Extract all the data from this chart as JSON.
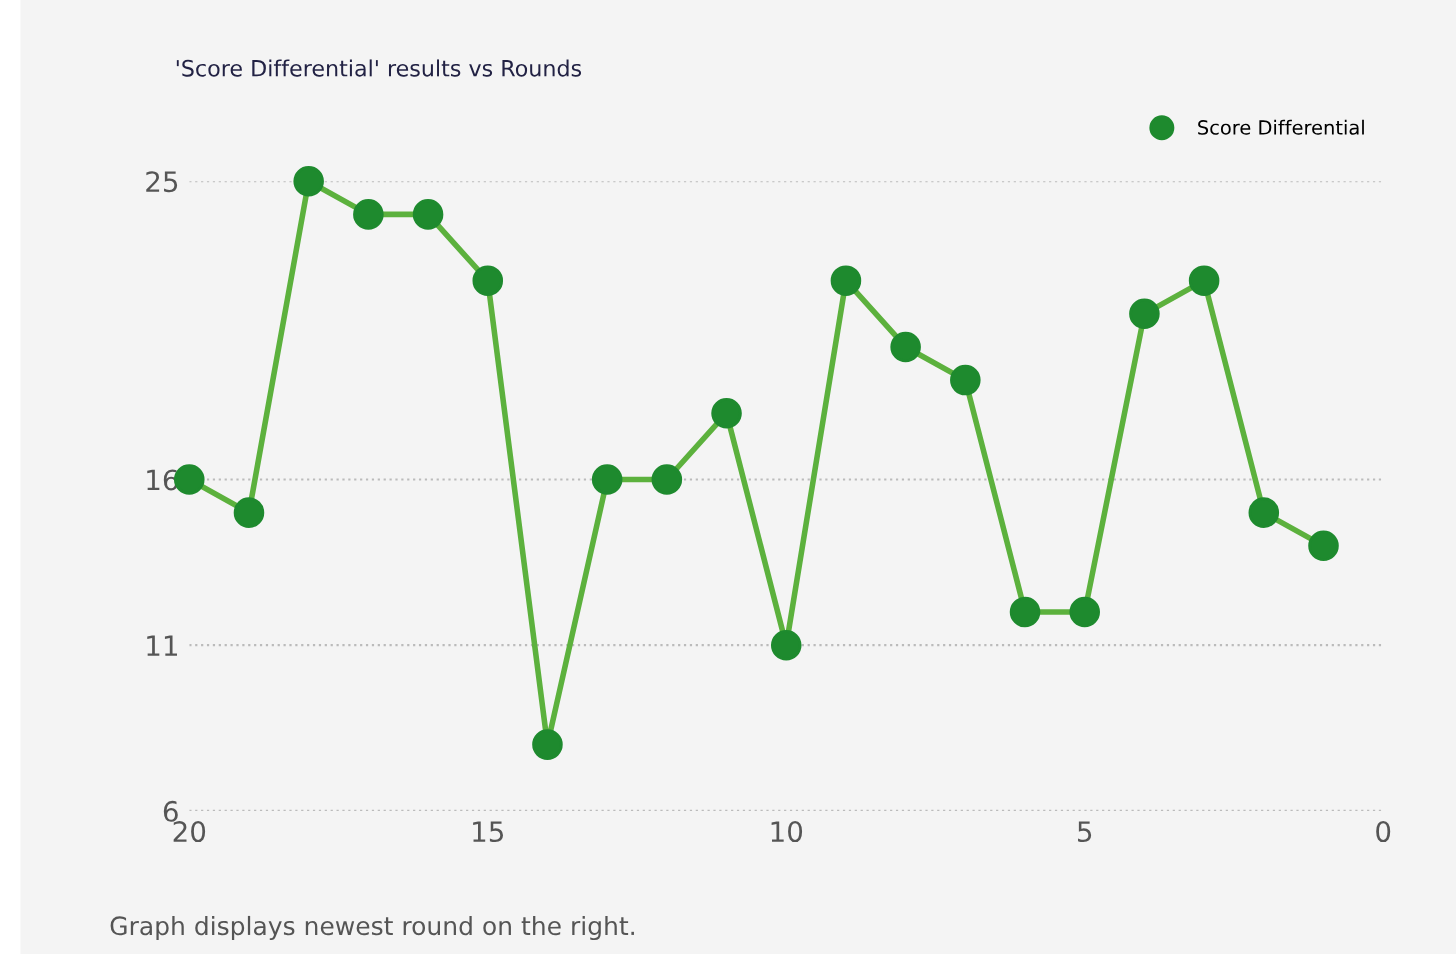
{
  "chart_data": {
    "type": "line",
    "title": "'Score Differential' results vs Rounds",
    "x": [
      20,
      19,
      18,
      17,
      16,
      15,
      14,
      13,
      12,
      11,
      10,
      9,
      8,
      7,
      6,
      5,
      4,
      3,
      2,
      1
    ],
    "series": [
      {
        "name": "Score Differential",
        "color": "#1e8a2e",
        "values": [
          16,
          15,
          25,
          24,
          24,
          22,
          8,
          16,
          16,
          18,
          11,
          22,
          20,
          19,
          12,
          12,
          21,
          22,
          15,
          14
        ]
      }
    ],
    "xlim": [
      20,
      0
    ],
    "xticks": [
      20,
      15,
      10,
      5,
      0
    ],
    "ylim": [
      6,
      25
    ],
    "yticks": [
      6,
      11,
      16,
      25
    ],
    "grid": "y",
    "legend": "top right",
    "marker": "circle",
    "line_style": "solid",
    "annotations": [
      "Graph displays newest round on the right."
    ]
  }
}
